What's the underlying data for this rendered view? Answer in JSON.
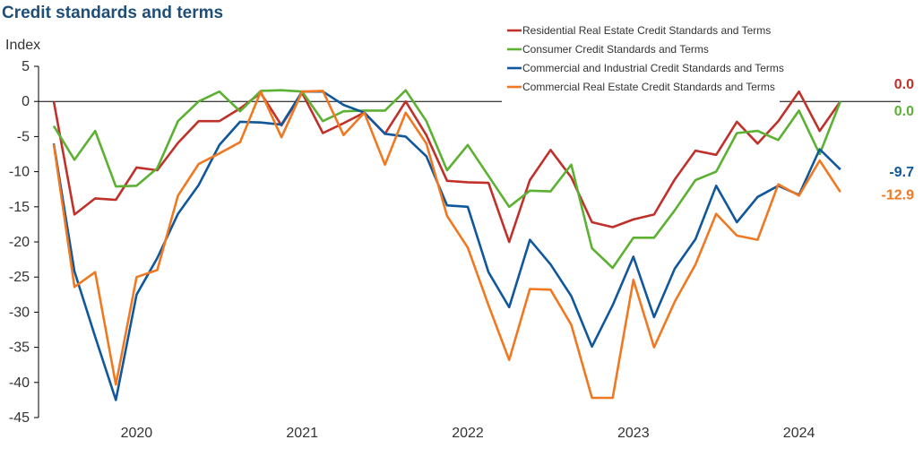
{
  "chart_data": {
    "type": "line",
    "title": "Credit standards and terms",
    "ylabel": "Index",
    "xlabel": "",
    "ylim": [
      -45,
      5
    ],
    "yticks": [
      5,
      0,
      -5,
      -10,
      -15,
      -20,
      -25,
      -30,
      -35,
      -40,
      -45
    ],
    "x_tick_labels": [
      {
        "label": "2020",
        "index": 4
      },
      {
        "label": "2021",
        "index": 12
      },
      {
        "label": "2022",
        "index": 20
      },
      {
        "label": "2023",
        "index": 28
      },
      {
        "label": "2024",
        "index": 36
      }
    ],
    "n_points": 40,
    "series": [
      {
        "name": "Residential Real Estate Credit Standards and Terms",
        "color": "#c0312b",
        "end_label": "0.0",
        "values": [
          0,
          -16.1,
          -13.8,
          -14.0,
          -9.4,
          -9.8,
          -5.9,
          -2.8,
          -2.8,
          -1.0,
          1.2,
          -3.4,
          1.2,
          -4.5,
          -3.1,
          -1.6,
          -4.6,
          0,
          -4.8,
          -11.3,
          -11.5,
          -11.6,
          -20.0,
          -11.2,
          -6.9,
          -10.8,
          -17.2,
          -17.9,
          -16.8,
          -16.1,
          -11.1,
          -7.0,
          -7.6,
          -2.9,
          -6.0,
          -2.8,
          1.4,
          -4.2,
          0.0,
          null
        ]
      },
      {
        "name": "Consumer Credit Standards and Terms",
        "color": "#5cb133",
        "end_label": "0.0",
        "values": [
          -3.5,
          -8.3,
          -4.2,
          -12.1,
          -12.0,
          -9.5,
          -2.8,
          0.0,
          1.4,
          -1.4,
          1.5,
          1.6,
          1.4,
          -2.8,
          -1.4,
          -1.3,
          -1.3,
          1.6,
          -2.8,
          -9.8,
          -6.2,
          -10.6,
          -15.0,
          -12.7,
          -12.8,
          -9.0,
          -20.9,
          -23.7,
          -19.4,
          -19.4,
          -15.5,
          -11.2,
          -10.0,
          -4.5,
          -4.2,
          -5.5,
          -1.3,
          -7.5,
          0.0,
          null
        ]
      },
      {
        "name": "Commercial and Industrial Credit Standards and Terms",
        "color": "#10579c",
        "end_label": "-9.7",
        "values": [
          -6.0,
          -24.2,
          -33.5,
          -42.5,
          -27.5,
          -22.3,
          -16.0,
          -11.9,
          -6.2,
          -2.9,
          -3.0,
          -3.3,
          1.4,
          1.4,
          -0.5,
          -1.6,
          -4.6,
          -5.0,
          -7.8,
          -14.8,
          -15.0,
          -24.3,
          -29.3,
          -19.7,
          -23.2,
          -27.7,
          -34.9,
          -29.0,
          -22.1,
          -30.7,
          -23.8,
          -19.6,
          -12.0,
          -17.2,
          -13.6,
          -12.0,
          -13.3,
          -6.8,
          -9.7,
          null
        ]
      },
      {
        "name": "Commercial Real Estate Credit Standards and Terms",
        "color": "#f07820",
        "end_label": "-12.9",
        "values": [
          -6.1,
          -26.4,
          -24.3,
          -40.3,
          -25.0,
          -24.0,
          -13.4,
          -8.9,
          -7.4,
          -5.8,
          1.4,
          -5.1,
          1.4,
          1.5,
          -4.8,
          -1.6,
          -9.0,
          -1.6,
          -6.0,
          -16.3,
          -20.8,
          -29.0,
          -36.8,
          -26.7,
          -26.8,
          -31.8,
          -42.2,
          -42.2,
          -25.4,
          -35.0,
          -28.5,
          -23.2,
          -16.0,
          -19.1,
          -19.7,
          -11.8,
          -13.4,
          -8.4,
          -12.9,
          null
        ]
      }
    ]
  }
}
